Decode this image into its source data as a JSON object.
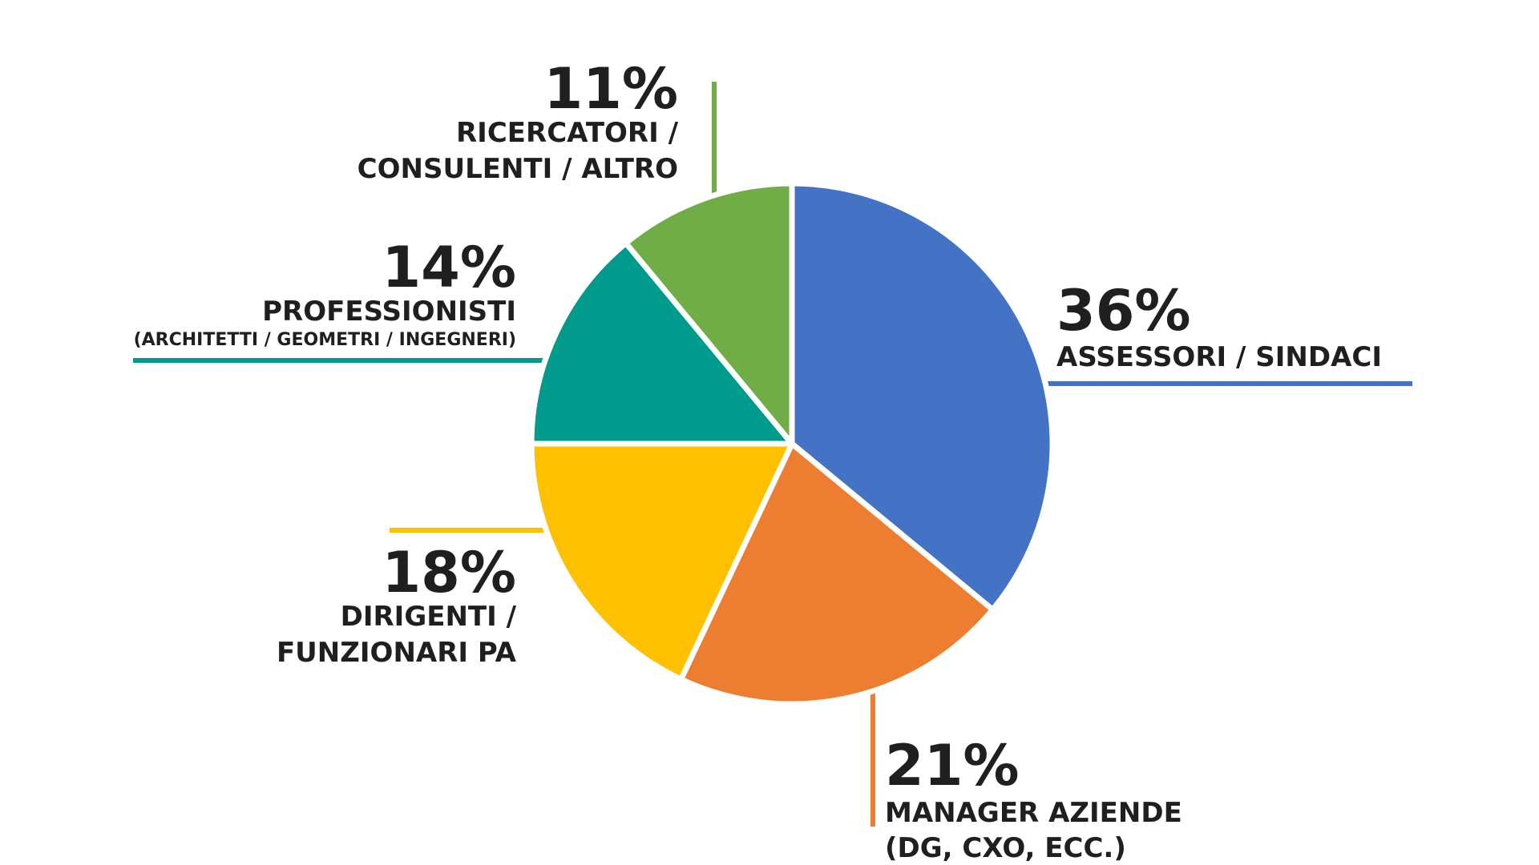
{
  "chart_data": {
    "type": "pie",
    "slices": [
      {
        "value": 36,
        "percent_label": "36%",
        "label_lines": [
          "ASSESSORI / SINDACI"
        ],
        "color": "#4472C4"
      },
      {
        "value": 21,
        "percent_label": "21%",
        "label_lines": [
          "MANAGER AZIENDE",
          "(DG, CXO, ECC.)"
        ],
        "color": "#ED7D31"
      },
      {
        "value": 18,
        "percent_label": "18%",
        "label_lines": [
          "DIRIGENTI /",
          "FUNZIONARI PA"
        ],
        "color": "#FFC000"
      },
      {
        "value": 14,
        "percent_label": "14%",
        "label_lines": [
          "PROFESSIONISTI",
          "(ARCHITETTI / GEOMETRI / INGEGNERI)"
        ],
        "color": "#009B8D"
      },
      {
        "value": 11,
        "percent_label": "11%",
        "label_lines": [
          "RICERCATORI /",
          "CONSULENTI / ALTRO"
        ],
        "color": "#70AD47"
      }
    ],
    "legend": "none"
  }
}
